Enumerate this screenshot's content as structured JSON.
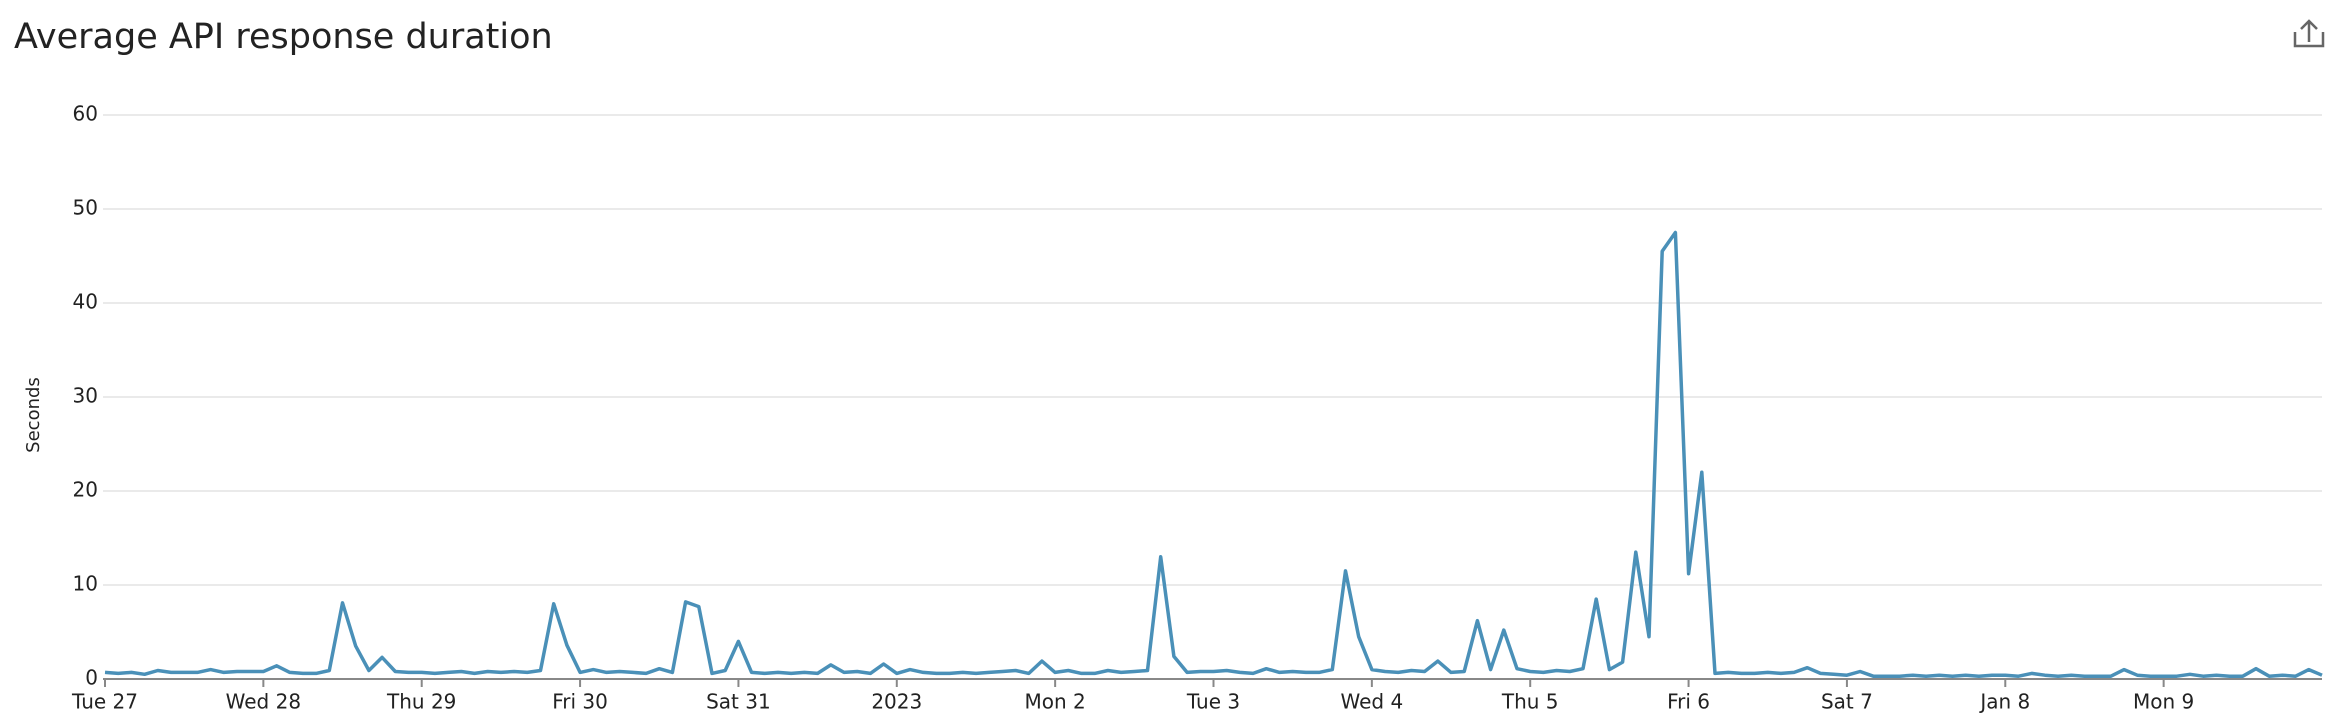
{
  "chart_data": {
    "type": "line",
    "title": "Average API response duration",
    "y_label": "Seconds",
    "color": "#4a90b8",
    "grid": true,
    "xlim": [
      0,
      336
    ],
    "ylim": [
      0,
      60
    ],
    "yticks": [
      0,
      10,
      20,
      30,
      40,
      50,
      60
    ],
    "xticks": [
      {
        "value": 0,
        "label": "Tue 27"
      },
      {
        "value": 24,
        "label": "Wed 28"
      },
      {
        "value": 48,
        "label": "Thu 29"
      },
      {
        "value": 72,
        "label": "Fri 30"
      },
      {
        "value": 96,
        "label": "Sat 31"
      },
      {
        "value": 120,
        "label": "2023"
      },
      {
        "value": 144,
        "label": "Mon 2"
      },
      {
        "value": 168,
        "label": "Tue 3"
      },
      {
        "value": 192,
        "label": "Wed 4"
      },
      {
        "value": 216,
        "label": "Thu 5"
      },
      {
        "value": 240,
        "label": "Fri 6"
      },
      {
        "value": 264,
        "label": "Sat 7"
      },
      {
        "value": 288,
        "label": "Jan 8"
      },
      {
        "value": 312,
        "label": "Mon 9"
      }
    ],
    "x": [
      0,
      2,
      4,
      6,
      8,
      10,
      12,
      14,
      16,
      18,
      20,
      22,
      24,
      26,
      28,
      30,
      32,
      34,
      36,
      38,
      40,
      42,
      44,
      46,
      48,
      50,
      52,
      54,
      56,
      58,
      60,
      62,
      64,
      66,
      68,
      70,
      72,
      74,
      76,
      78,
      80,
      82,
      84,
      86,
      88,
      90,
      92,
      94,
      96,
      98,
      100,
      102,
      104,
      106,
      108,
      110,
      112,
      114,
      116,
      118,
      120,
      122,
      124,
      126,
      128,
      130,
      132,
      134,
      136,
      138,
      140,
      142,
      144,
      146,
      148,
      150,
      152,
      154,
      156,
      158,
      160,
      162,
      164,
      166,
      168,
      170,
      172,
      174,
      176,
      178,
      180,
      182,
      184,
      186,
      188,
      190,
      192,
      194,
      196,
      198,
      200,
      202,
      204,
      206,
      208,
      210,
      212,
      214,
      216,
      218,
      220,
      222,
      224,
      226,
      228,
      230,
      232,
      234,
      236,
      238,
      240,
      242,
      244,
      246,
      248,
      250,
      252,
      254,
      256,
      258,
      260,
      262,
      264,
      266,
      268,
      270,
      272,
      274,
      276,
      278,
      280,
      282,
      284,
      286,
      288,
      290,
      292,
      294,
      296,
      298,
      300,
      302,
      304,
      306,
      308,
      310,
      312,
      314,
      316,
      318,
      320,
      322,
      324,
      326,
      328,
      330,
      332,
      334,
      336
    ],
    "values": [
      0.7,
      0.6,
      0.7,
      0.5,
      0.9,
      0.7,
      0.7,
      0.7,
      1.0,
      0.7,
      0.8,
      0.8,
      0.8,
      1.4,
      0.7,
      0.6,
      0.6,
      0.9,
      8.1,
      3.5,
      0.9,
      2.3,
      0.8,
      0.7,
      0.7,
      0.6,
      0.7,
      0.8,
      0.6,
      0.8,
      0.7,
      0.8,
      0.7,
      0.9,
      8,
      3.6,
      0.7,
      1.0,
      0.7,
      0.8,
      0.7,
      0.6,
      1.1,
      0.7,
      8.2,
      7.7,
      0.6,
      0.9,
      4.0,
      0.7,
      0.6,
      0.7,
      0.6,
      0.7,
      0.6,
      1.5,
      0.7,
      0.8,
      0.6,
      1.6,
      0.6,
      1.0,
      0.7,
      0.6,
      0.6,
      0.7,
      0.6,
      0.7,
      0.8,
      0.9,
      0.6,
      1.9,
      0.7,
      0.9,
      0.6,
      0.6,
      0.9,
      0.7,
      0.8,
      0.9,
      13,
      2.4,
      0.7,
      0.8,
      0.8,
      0.9,
      0.7,
      0.6,
      1.1,
      0.7,
      0.8,
      0.7,
      0.7,
      1.0,
      11.5,
      4.5,
      1.0,
      0.8,
      0.7,
      0.9,
      0.8,
      1.9,
      0.7,
      0.8,
      6.2,
      1.0,
      5.2,
      1.1,
      0.8,
      0.7,
      0.9,
      0.8,
      1.1,
      8.5,
      1.0,
      1.8,
      13.5,
      4.5,
      45.5,
      47.5,
      11.2,
      22,
      0.6,
      0.7,
      0.6,
      0.6,
      0.7,
      0.6,
      0.7,
      1.2,
      0.6,
      0.5,
      0.4,
      0.8,
      0.3,
      0.3,
      0.3,
      0.4,
      0.3,
      0.4,
      0.3,
      0.4,
      0.3,
      0.4,
      0.4,
      0.3,
      0.6,
      0.4,
      0.3,
      0.4,
      0.3,
      0.3,
      0.3,
      1.0,
      0.4,
      0.3,
      0.3,
      0.3,
      0.5,
      0.3,
      0.4,
      0.3,
      0.3,
      1.1,
      0.3,
      0.4,
      0.3,
      1.0,
      0.4
    ]
  }
}
